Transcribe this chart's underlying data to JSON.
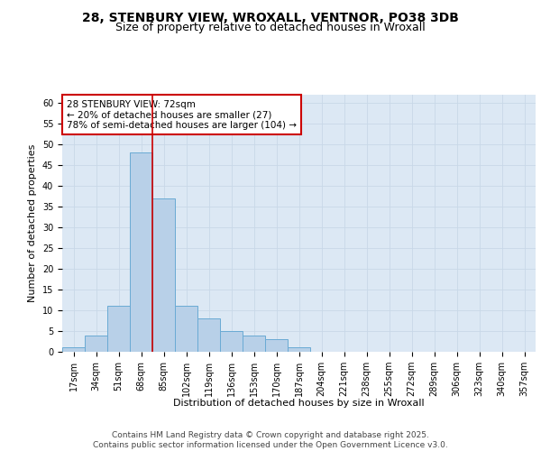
{
  "title_line1": "28, STENBURY VIEW, WROXALL, VENTNOR, PO38 3DB",
  "title_line2": "Size of property relative to detached houses in Wroxall",
  "xlabel": "Distribution of detached houses by size in Wroxall",
  "ylabel": "Number of detached properties",
  "categories": [
    "17sqm",
    "34sqm",
    "51sqm",
    "68sqm",
    "85sqm",
    "102sqm",
    "119sqm",
    "136sqm",
    "153sqm",
    "170sqm",
    "187sqm",
    "204sqm",
    "221sqm",
    "238sqm",
    "255sqm",
    "272sqm",
    "289sqm",
    "306sqm",
    "323sqm",
    "340sqm",
    "357sqm"
  ],
  "values": [
    1,
    4,
    11,
    48,
    37,
    11,
    8,
    5,
    4,
    3,
    1,
    0,
    0,
    0,
    0,
    0,
    0,
    0,
    0,
    0,
    0
  ],
  "bar_color": "#b8d0e8",
  "bar_edge_color": "#6aaad4",
  "vline_color": "#cc0000",
  "vline_x_index": 3.5,
  "annotation_text": "28 STENBURY VIEW: 72sqm\n← 20% of detached houses are smaller (27)\n78% of semi-detached houses are larger (104) →",
  "annotation_box_color": "#ffffff",
  "annotation_box_edge_color": "#cc0000",
  "ylim": [
    0,
    62
  ],
  "yticks": [
    0,
    5,
    10,
    15,
    20,
    25,
    30,
    35,
    40,
    45,
    50,
    55,
    60
  ],
  "grid_color": "#c8d8e8",
  "background_color": "#dce8f4",
  "footer_text": "Contains HM Land Registry data © Crown copyright and database right 2025.\nContains public sector information licensed under the Open Government Licence v3.0.",
  "title_fontsize": 10,
  "subtitle_fontsize": 9,
  "axis_label_fontsize": 8,
  "tick_fontsize": 7,
  "annotation_fontsize": 7.5,
  "footer_fontsize": 6.5
}
